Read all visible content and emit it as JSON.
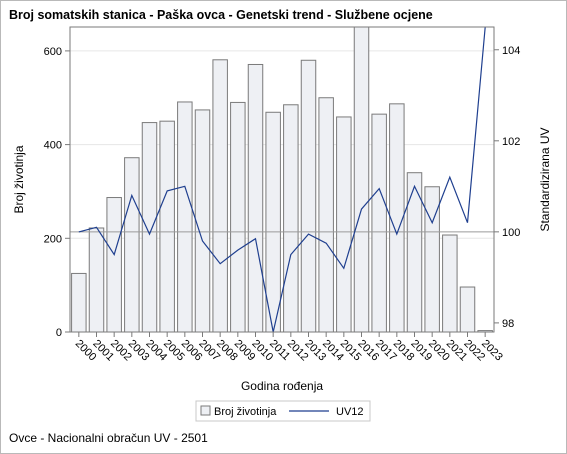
{
  "page": {
    "title": "Broj somatskih stanica - Paška ovca - Genetski trend - Službene ocjene",
    "footnote": "Ovce - Nacionalni obračun UV - 2501"
  },
  "chart_data": {
    "type": "bar",
    "title": "Broj somatskih stanica - Paška ovca - Genetski trend - Službene ocjene",
    "xlabel": "Godina rođenja",
    "ylabel": "Broj životinja",
    "y2label": "Standardizirana UV",
    "categories": [
      "2000",
      "2001",
      "2002",
      "2003",
      "2004",
      "2005",
      "2006",
      "2007",
      "2008",
      "2009",
      "2010",
      "2011",
      "2012",
      "2013",
      "2014",
      "2015",
      "2016",
      "2017",
      "2018",
      "2019",
      "2020",
      "2021",
      "2022",
      "2023"
    ],
    "series": [
      {
        "name": "Broj životinja",
        "type": "bar",
        "axis": "left",
        "values": [
          125,
          222,
          287,
          372,
          447,
          450,
          491,
          474,
          581,
          490,
          571,
          469,
          485,
          580,
          500,
          459,
          651,
          465,
          487,
          340,
          310,
          207,
          96,
          3
        ]
      },
      {
        "name": "UV12",
        "type": "line",
        "axis": "right",
        "values": [
          100.0,
          100.1,
          99.5,
          100.8,
          99.95,
          100.9,
          101.0,
          99.8,
          99.3,
          99.6,
          99.85,
          97.8,
          99.5,
          99.95,
          99.75,
          99.2,
          100.5,
          100.95,
          99.95,
          101.0,
          100.2,
          101.2,
          100.2,
          104.5
        ]
      }
    ],
    "yticks": [
      0,
      200,
      400,
      600
    ],
    "y2ticks": [
      98,
      100,
      102,
      104
    ],
    "ylim": [
      0,
      651
    ],
    "y2lim": [
      97.8,
      104.5
    ],
    "reference_line": {
      "axis": "right",
      "value": 100
    },
    "grid": true,
    "legend_position": "bottom-center",
    "colors": {
      "bar_fill": "#eef0f4",
      "bar_stroke": "#7a7a7a",
      "line": "#1f3f8f",
      "grid": "#e6e6e6",
      "reference": "#9a9a9a",
      "axis": "#7a7a7a"
    }
  }
}
